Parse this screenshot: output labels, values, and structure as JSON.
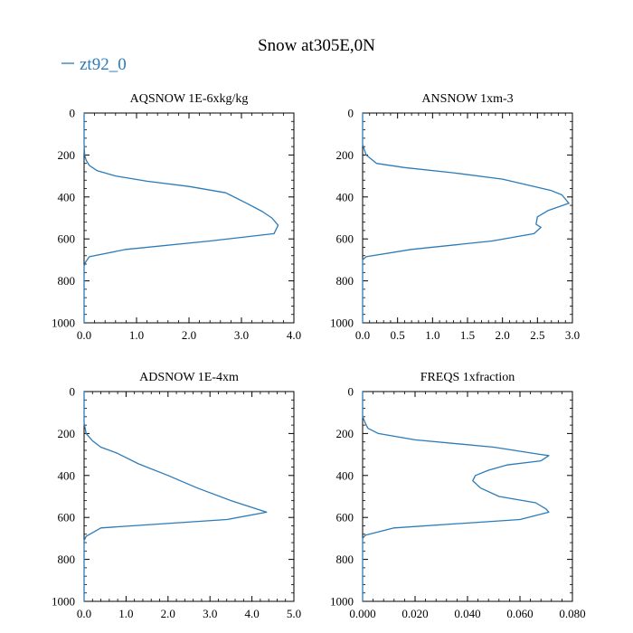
{
  "figure": {
    "title": "Snow at305E,0N",
    "legend_label": "zt92_0",
    "series_color": "#2b7bb9"
  },
  "chart_data": [
    {
      "type": "line",
      "title": "AQSNOW  1E-6xkg/kg",
      "xlim": [
        0,
        4
      ],
      "xticks": [
        0,
        1,
        2,
        3,
        4
      ],
      "xtick_labels": [
        "0.0",
        "1.0",
        "2.0",
        "3.0",
        "4.0"
      ],
      "ylim": [
        0,
        1000
      ],
      "yticks": [
        0,
        200,
        400,
        600,
        800,
        1000
      ],
      "ytick_labels": [
        "0",
        "200",
        "400",
        "600",
        "800",
        "1000"
      ],
      "y_inverted": true,
      "series": [
        {
          "name": "zt92_0",
          "x": [
            0,
            0,
            0.01,
            0.04,
            0.1,
            0.25,
            0.6,
            1.2,
            2.0,
            2.7,
            3.1,
            3.4,
            3.58,
            3.7,
            3.62,
            2.4,
            0.8,
            0.1,
            0.03,
            0,
            0
          ],
          "y": [
            0,
            150,
            200,
            225,
            250,
            275,
            300,
            325,
            350,
            380,
            430,
            470,
            500,
            535,
            575,
            610,
            650,
            685,
            710,
            730,
            1000
          ]
        }
      ]
    },
    {
      "type": "line",
      "title": "ANSNOW  1xm-3",
      "xlim": [
        0,
        3
      ],
      "xticks": [
        0,
        0.5,
        1,
        1.5,
        2,
        2.5,
        3
      ],
      "xtick_labels": [
        "0.0",
        "0.5",
        "1.0",
        "1.5",
        "2.0",
        "2.5",
        "3.0"
      ],
      "ylim": [
        0,
        1000
      ],
      "yticks": [
        0,
        200,
        400,
        600,
        800,
        1000
      ],
      "ytick_labels": [
        "0",
        "200",
        "400",
        "600",
        "800",
        "1000"
      ],
      "y_inverted": true,
      "series": [
        {
          "name": "zt92_0",
          "x": [
            0,
            0,
            0.05,
            0.2,
            0.6,
            1.3,
            2.0,
            2.7,
            2.85,
            2.95,
            2.65,
            2.5,
            2.48,
            2.55,
            2.45,
            1.85,
            0.7,
            0.05,
            0,
            0
          ],
          "y": [
            0,
            150,
            200,
            240,
            260,
            285,
            315,
            370,
            390,
            430,
            465,
            495,
            530,
            545,
            575,
            610,
            650,
            685,
            700,
            1000
          ]
        }
      ]
    },
    {
      "type": "line",
      "title": "ADSNOW  1E-4xm",
      "xlim": [
        0,
        5
      ],
      "xticks": [
        0,
        1,
        2,
        3,
        4,
        5
      ],
      "xtick_labels": [
        "0.0",
        "1.0",
        "2.0",
        "3.0",
        "4.0",
        "5.0"
      ],
      "ylim": [
        0,
        1000
      ],
      "yticks": [
        0,
        200,
        400,
        600,
        800,
        1000
      ],
      "ytick_labels": [
        "0",
        "200",
        "400",
        "600",
        "800",
        "1000"
      ],
      "y_inverted": true,
      "series": [
        {
          "name": "zt92_0",
          "x": [
            0,
            0,
            0.05,
            0.2,
            0.4,
            0.8,
            1.3,
            2.0,
            2.7,
            3.5,
            4.35,
            3.4,
            0.4,
            0.05,
            0,
            0
          ],
          "y": [
            0,
            150,
            200,
            235,
            265,
            295,
            345,
            400,
            460,
            520,
            575,
            610,
            650,
            690,
            710,
            1000
          ]
        }
      ]
    },
    {
      "type": "line",
      "title": "FREQS  1xfraction",
      "xlim": [
        0,
        0.08
      ],
      "xticks": [
        0,
        0.02,
        0.04,
        0.06,
        0.08
      ],
      "xtick_labels": [
        "0.000",
        "0.020",
        "0.040",
        "0.060",
        "0.080"
      ],
      "ylim": [
        0,
        1000
      ],
      "yticks": [
        0,
        200,
        400,
        600,
        800,
        1000
      ],
      "ytick_labels": [
        "0",
        "200",
        "400",
        "600",
        "800",
        "1000"
      ],
      "y_inverted": true,
      "series": [
        {
          "name": "zt92_0",
          "x": [
            0,
            0,
            0.001,
            0.002,
            0.006,
            0.02,
            0.05,
            0.068,
            0.071,
            0.068,
            0.055,
            0.048,
            0.043,
            0.042,
            0.045,
            0.052,
            0.066,
            0.07,
            0.071,
            0.06,
            0.012,
            0.001,
            0,
            0
          ],
          "y": [
            0,
            120,
            150,
            175,
            200,
            230,
            265,
            300,
            305,
            330,
            350,
            375,
            400,
            425,
            460,
            500,
            530,
            560,
            575,
            610,
            650,
            685,
            700,
            1000
          ]
        }
      ]
    }
  ]
}
